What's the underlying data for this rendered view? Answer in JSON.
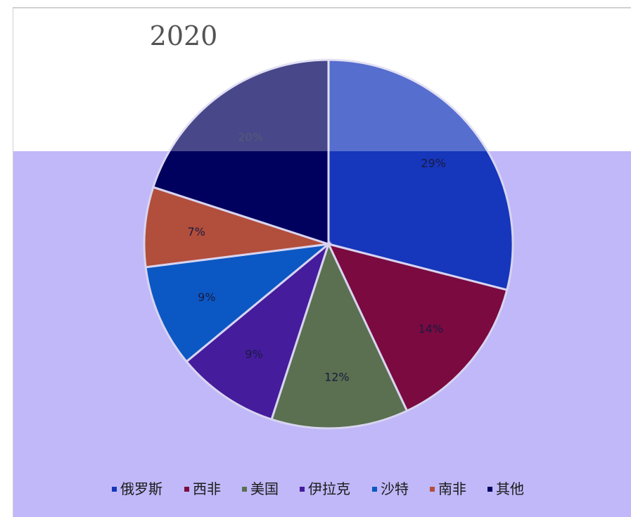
{
  "chart_data": {
    "type": "pie",
    "title": "2020",
    "categories": [
      "俄罗斯",
      "西非",
      "美国",
      "伊拉克",
      "沙特",
      "南非",
      "其他"
    ],
    "values": [
      29,
      14,
      12,
      9,
      9,
      7,
      20
    ],
    "labels": [
      "29%",
      "14%",
      "12%",
      "9%",
      "9%",
      "7%",
      "20%"
    ],
    "colors": [
      "#1636bb",
      "#7a0a40",
      "#5a7050",
      "#441c9c",
      "#0b58c4",
      "#b24e3c",
      "#00005e"
    ],
    "legend": "bottom"
  },
  "page": {
    "overlay_color": "#c0b8f8"
  }
}
